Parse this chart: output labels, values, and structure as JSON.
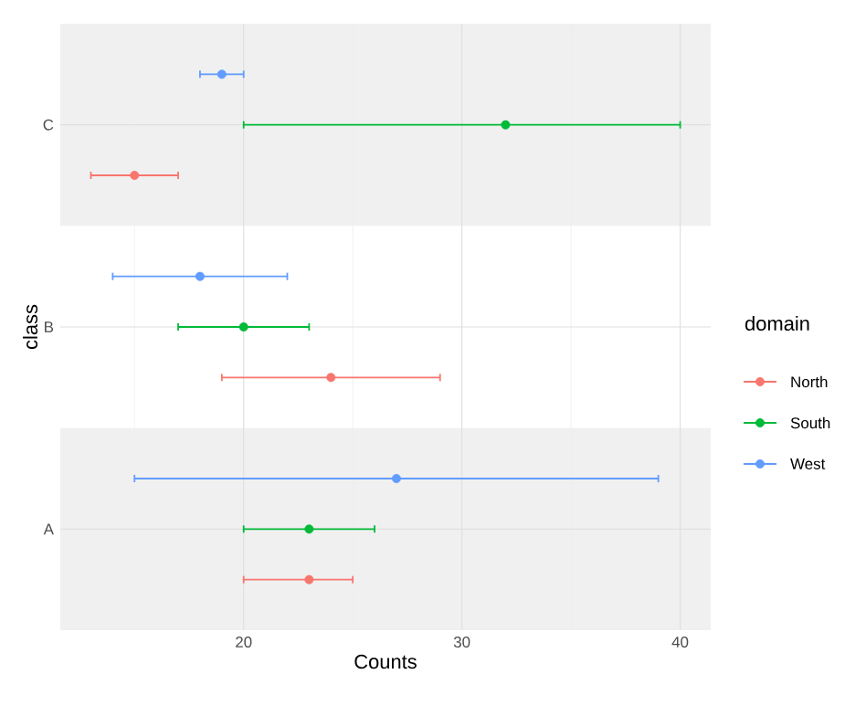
{
  "chart_data": {
    "type": "scatter",
    "orientation": "horizontal",
    "xlabel": "Counts",
    "ylabel": "class",
    "legend_title": "domain",
    "categories": [
      "C",
      "B",
      "A"
    ],
    "series": [
      {
        "name": "North",
        "color": "#f8766d",
        "values": [
          15,
          24,
          23
        ],
        "errors": [
          [
            13,
            17
          ],
          [
            19,
            29
          ],
          [
            20,
            25
          ]
        ]
      },
      {
        "name": "South",
        "color": "#00ba38",
        "values": [
          32,
          20,
          23
        ],
        "errors": [
          [
            20,
            40
          ],
          [
            17,
            23
          ],
          [
            20,
            26
          ]
        ]
      },
      {
        "name": "West",
        "color": "#619cff",
        "values": [
          19,
          18,
          27
        ],
        "errors": [
          [
            18,
            20
          ],
          [
            14,
            22
          ],
          [
            15,
            39
          ]
        ]
      }
    ],
    "xlim": [
      11.6,
      41.4
    ],
    "xticks": [
      {
        "value": 15,
        "label": null
      },
      20,
      {
        "value": 25,
        "label": null
      },
      30,
      {
        "value": 35,
        "label": null
      },
      40
    ],
    "grid": true,
    "legend": "right",
    "marker": "circle"
  }
}
